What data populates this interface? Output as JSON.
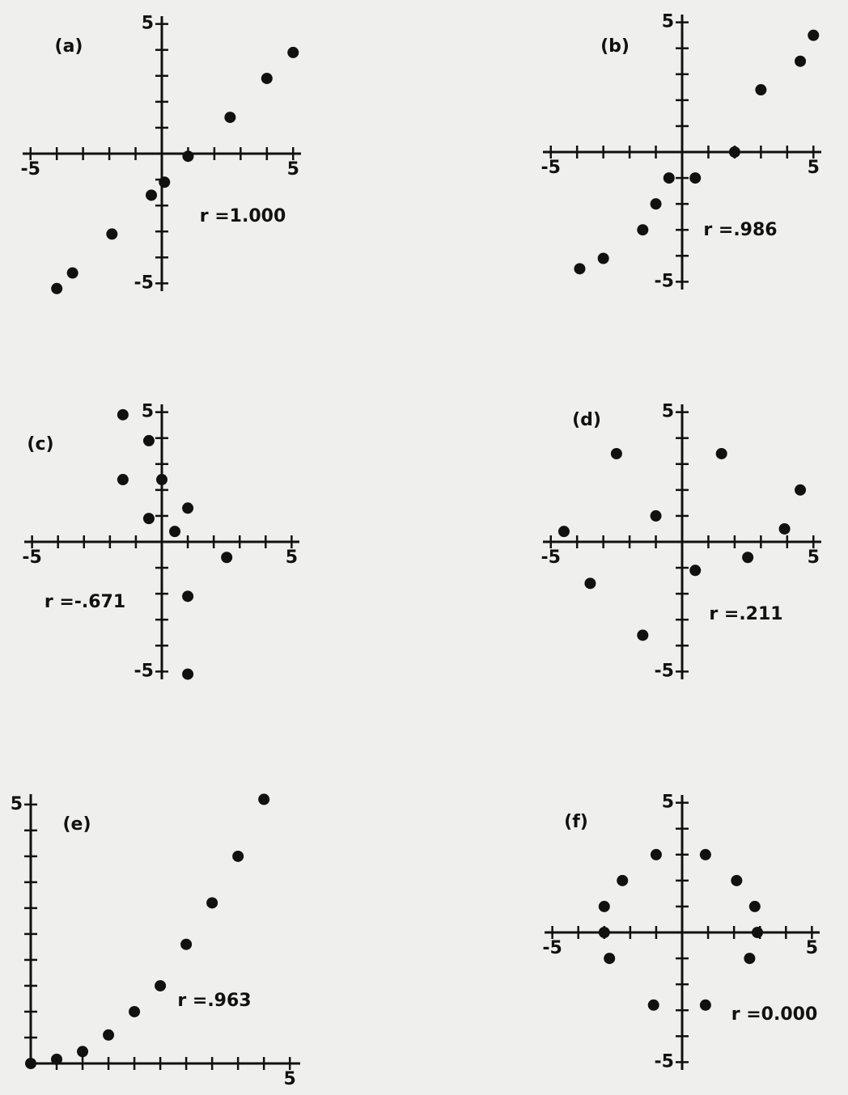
{
  "chart_data": [
    {
      "type": "scatter",
      "label": "(a)",
      "annotation": "r =1.000",
      "x": [
        -4.0,
        -3.4,
        -1.9,
        -0.4,
        0.1,
        1.0,
        2.6,
        4.0,
        5.0
      ],
      "y": [
        -5.2,
        -4.6,
        -3.1,
        -1.6,
        -1.1,
        -0.1,
        1.4,
        2.9,
        3.9
      ],
      "xlim": [
        -5.3,
        5.3
      ],
      "ylim": [
        -5.3,
        5.3
      ],
      "xticks": [
        -5,
        5
      ],
      "yticks": [
        -5,
        5
      ],
      "xminor": [
        -4,
        -3,
        -2,
        -1,
        1,
        2,
        3,
        4
      ],
      "yminor": [
        -4,
        -3,
        -2,
        -1,
        1,
        2,
        3,
        4
      ],
      "color": "#111111"
    },
    {
      "type": "scatter",
      "label": "(b)",
      "annotation": "r =.986",
      "x": [
        -3.9,
        -3.0,
        -1.5,
        -1.0,
        -0.5,
        0.5,
        2.0,
        3.0,
        4.5,
        5.0
      ],
      "y": [
        -4.5,
        -4.1,
        -3.0,
        -2.0,
        -1.0,
        -1.0,
        0.0,
        2.4,
        3.5,
        4.5
      ],
      "xlim": [
        -5.3,
        5.3
      ],
      "ylim": [
        -5.3,
        5.3
      ],
      "xticks": [
        -5,
        5
      ],
      "yticks": [
        -5,
        5
      ],
      "xminor": [
        -4,
        -3,
        -2,
        -1,
        1,
        2,
        3,
        4
      ],
      "yminor": [
        -4,
        -3,
        -2,
        -1,
        1,
        2,
        3,
        4
      ],
      "color": "#111111"
    },
    {
      "type": "scatter",
      "label": "(c)",
      "annotation": "r =-.671",
      "x": [
        -1.5,
        -0.5,
        -1.5,
        0.0,
        1.0,
        -0.5,
        0.5,
        2.5,
        1.0,
        1.0
      ],
      "y": [
        4.9,
        3.9,
        2.4,
        2.4,
        1.3,
        0.9,
        0.4,
        -0.6,
        -2.1,
        -5.1
      ],
      "xlim": [
        -5.3,
        5.3
      ],
      "ylim": [
        -5.3,
        5.3
      ],
      "xticks": [
        -5,
        5
      ],
      "yticks": [
        -5,
        5
      ],
      "xminor": [
        -4,
        -3,
        -2,
        -1,
        1,
        2,
        3,
        4
      ],
      "yminor": [
        -4,
        -3,
        -2,
        -1,
        1,
        2,
        3,
        4
      ],
      "color": "#111111"
    },
    {
      "type": "scatter",
      "label": "(d)",
      "annotation": "r =.211",
      "x": [
        -4.5,
        -3.5,
        -2.5,
        -1.5,
        -1.0,
        0.5,
        1.5,
        2.5,
        3.9,
        4.5
      ],
      "y": [
        0.4,
        -1.6,
        3.4,
        -3.6,
        1.0,
        -1.1,
        3.4,
        -0.6,
        0.5,
        2.0
      ],
      "xlim": [
        -5.3,
        5.3
      ],
      "ylim": [
        -5.3,
        5.3
      ],
      "xticks": [
        -5,
        5
      ],
      "yticks": [
        -5,
        5
      ],
      "xminor": [
        -4,
        -3,
        -2,
        -1,
        1,
        2,
        3,
        4
      ],
      "yminor": [
        -4,
        -3,
        -2,
        -1,
        1,
        2,
        3,
        4
      ],
      "color": "#111111"
    },
    {
      "type": "scatter",
      "label": "(e)",
      "annotation": "r =.963",
      "x": [
        0.0,
        0.5,
        1.0,
        1.5,
        2.0,
        2.5,
        3.0,
        3.5,
        4.0,
        4.5
      ],
      "y": [
        0.0,
        0.08,
        0.23,
        0.55,
        1.0,
        1.5,
        2.3,
        3.1,
        4.0,
        5.1
      ],
      "xlim": [
        0,
        5.2
      ],
      "ylim": [
        0,
        5.2
      ],
      "xticks": [
        5
      ],
      "yticks": [
        5
      ],
      "xminor": [
        0.5,
        1,
        1.5,
        2,
        2.5,
        3,
        3.5,
        4,
        4.5
      ],
      "yminor": [
        0.5,
        1,
        1.5,
        2,
        2.5,
        3,
        3.5,
        4,
        4.5
      ],
      "color": "#111111"
    },
    {
      "type": "scatter",
      "label": "(f)",
      "annotation": "r =0.000",
      "x": [
        -3.0,
        -2.8,
        -2.3,
        -1.1,
        -1.0,
        0.9,
        0.9,
        2.1,
        2.6,
        2.8,
        2.9,
        -3.0
      ],
      "y": [
        1.0,
        -1.0,
        2.0,
        -2.8,
        3.0,
        3.0,
        -2.8,
        2.0,
        -1.0,
        1.0,
        0.0,
        0.0
      ],
      "xlim": [
        -5.3,
        5.3
      ],
      "ylim": [
        -5.3,
        5.3
      ],
      "xticks": [
        -5,
        5
      ],
      "yticks": [
        -5,
        5
      ],
      "xminor": [
        -4,
        -3,
        -2,
        -1,
        1,
        2,
        3,
        4
      ],
      "yminor": [
        -4,
        -3,
        -2,
        -1,
        1,
        2,
        3,
        4
      ],
      "color": "#111111"
    }
  ]
}
